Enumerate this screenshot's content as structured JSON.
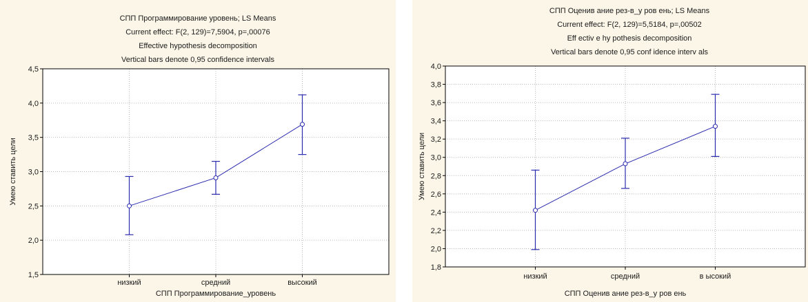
{
  "chart_data": [
    {
      "type": "line",
      "title_lines": [
        "СПП Программирование  уровень; LS Means",
        "Current effect: F(2, 129)=7,5904, p=,00076",
        "Effective hypothesis decomposition",
        "Vertical bars denote 0,95 confidence intervals"
      ],
      "xlabel": "СПП Программирование_уровень",
      "ylabel": "Умею ставить цели",
      "categories": [
        "низкий",
        "средний",
        "высокий"
      ],
      "ylim": [
        1.5,
        4.5
      ],
      "yticks": [
        "1,5",
        "2,0",
        "2,5",
        "3,0",
        "3,5",
        "4,0",
        "4,5"
      ],
      "ytick_values": [
        1.5,
        2.0,
        2.5,
        3.0,
        3.5,
        4.0,
        4.5
      ],
      "grid": true,
      "series": [
        {
          "values": [
            2.5,
            2.91,
            3.69
          ],
          "lower": [
            2.08,
            2.67,
            3.25
          ],
          "upper": [
            2.93,
            3.15,
            4.12
          ]
        }
      ],
      "colors": {
        "line": "#2b2bb0",
        "plot_bg": "#ffffff",
        "frame_bg": "#fbf6e8"
      }
    },
    {
      "type": "line",
      "title_lines": [
        "СПП Оценив ание рез-в_у ров ень; LS Means",
        "Current effect: F(2, 129)=5,5184, p=,00502",
        "Eff ectiv e hy pothesis decomposition",
        "Vertical bars denote 0,95 conf idence interv als"
      ],
      "xlabel": "СПП Оценив ание рез-в_у ров ень",
      "ylabel": "Умею ставить цели",
      "categories": [
        "низкий",
        "средний",
        "в ысокий"
      ],
      "ylim": [
        1.8,
        4.0
      ],
      "yticks": [
        "1,8",
        "2,0",
        "2,2",
        "2,4",
        "2,6",
        "2,8",
        "3,0",
        "3,2",
        "3,4",
        "3,6",
        "3,8",
        "4,0"
      ],
      "ytick_values": [
        1.8,
        2.0,
        2.2,
        2.4,
        2.6,
        2.8,
        3.0,
        3.2,
        3.4,
        3.6,
        3.8,
        4.0
      ],
      "grid": true,
      "series": [
        {
          "values": [
            2.42,
            2.93,
            3.34
          ],
          "lower": [
            1.99,
            2.66,
            3.01
          ],
          "upper": [
            2.86,
            3.21,
            3.69
          ]
        }
      ],
      "colors": {
        "line": "#2b2bb0",
        "plot_bg": "#ffffff",
        "frame_bg": "#fbf6e8"
      }
    }
  ],
  "watermark": {
    "color": "#ffffff"
  }
}
